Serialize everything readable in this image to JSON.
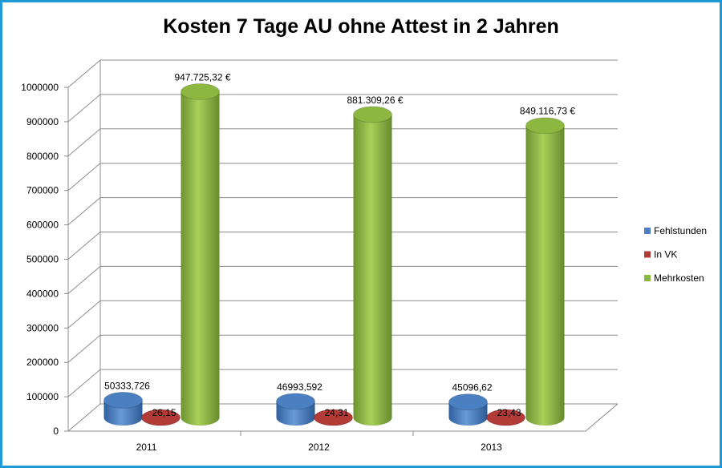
{
  "chart_data": {
    "type": "bar",
    "subtype": "3d-cylinder",
    "title": "Kosten 7 Tage AU ohne Attest in 2 Jahren",
    "xlabel": "",
    "ylabel": "",
    "ylim": [
      0,
      1000000
    ],
    "yticks": [
      "0",
      "100000",
      "200000",
      "300000",
      "400000",
      "500000",
      "600000",
      "700000",
      "800000",
      "900000",
      "1000000"
    ],
    "categories": [
      "2011",
      "2012",
      "2013"
    ],
    "series": [
      {
        "name": "Fehlstunden",
        "color": "#4a7fc1",
        "values": [
          50333.726,
          46993.592,
          45096.62
        ],
        "labels": [
          "50333,726",
          "46993,592",
          "45096,62"
        ]
      },
      {
        "name": "In VK",
        "color": "#b23a37",
        "values": [
          26.15,
          24.31,
          23.43
        ],
        "labels": [
          "26,15",
          "24,31",
          "23,43"
        ]
      },
      {
        "name": "Mehrkosten",
        "color": "#8cb842",
        "values": [
          947725.32,
          881309.26,
          849116.73
        ],
        "labels": [
          "947.725,32 €",
          "881.309,26 €",
          "849.116,73 €"
        ]
      }
    ],
    "grid": true,
    "legend": "right"
  }
}
